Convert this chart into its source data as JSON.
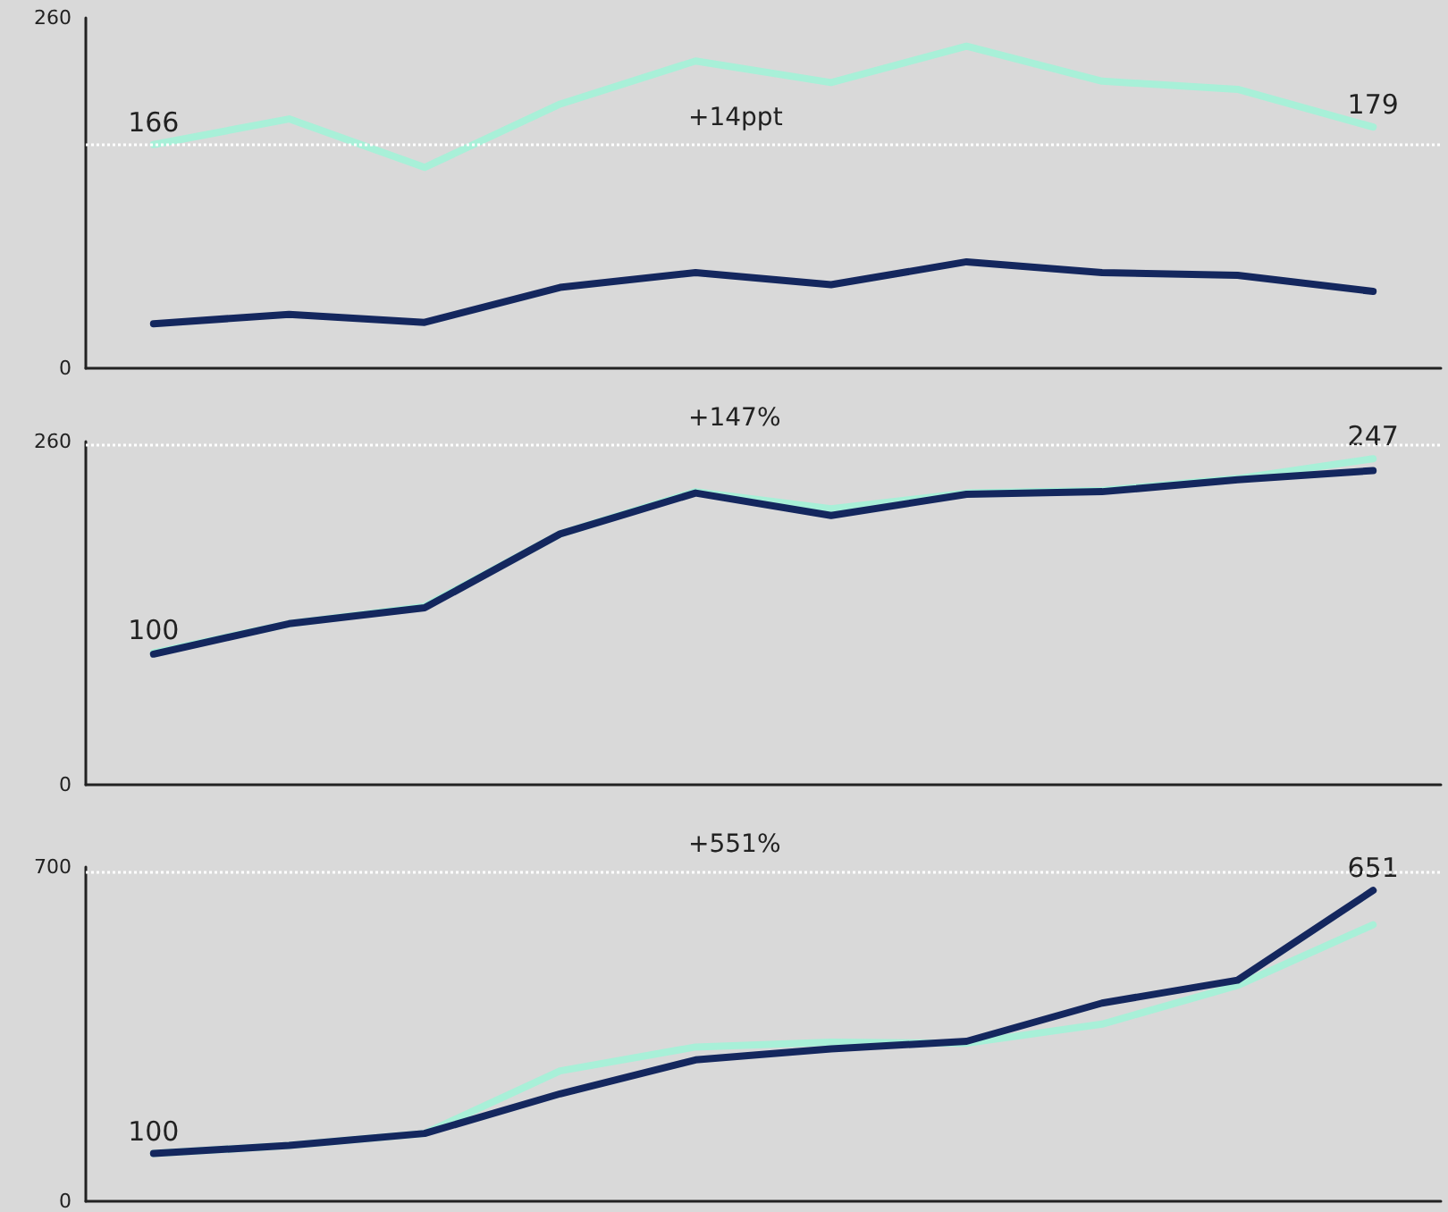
{
  "chart_data": [
    {
      "type": "line",
      "categories": [
        null,
        null,
        null,
        null,
        null,
        null,
        null,
        null,
        null,
        null
      ],
      "ylim": [
        0,
        260
      ],
      "yticks": [
        0,
        260
      ],
      "tick_labels": "y",
      "grid": false,
      "line_style": "solid",
      "series": [
        {
          "color": "#a8f0d8",
          "values": [
            166,
            185,
            149,
            196,
            228,
            212,
            239,
            213,
            207,
            179
          ],
          "value_labels": [
            "166",
            null,
            null,
            null,
            null,
            null,
            null,
            null,
            null,
            "179"
          ]
        },
        {
          "color": "#14275e",
          "values": [
            33,
            40,
            34,
            60,
            71,
            62,
            79,
            71,
            69,
            57
          ]
        }
      ],
      "ref_lines": [
        {
          "axis": "y",
          "value": 166,
          "color": "#ffffff",
          "line_style": "dotted"
        }
      ],
      "annotations": [
        "+14ppt"
      ]
    },
    {
      "type": "line",
      "categories": [
        null,
        null,
        null,
        null,
        null,
        null,
        null,
        null,
        null,
        null
      ],
      "ylim": [
        0,
        260
      ],
      "yticks": [
        0,
        260
      ],
      "tick_labels": "y",
      "grid": false,
      "line_style": "solid",
      "series": [
        {
          "color": "#a8f0d8",
          "values": [
            100,
            122,
            135,
            190,
            222,
            209,
            221,
            223,
            232,
            247
          ],
          "value_labels": [
            "100",
            null,
            null,
            null,
            null,
            null,
            null,
            null,
            null,
            "247"
          ]
        },
        {
          "color": "#14275e",
          "values": [
            99,
            122,
            134,
            190,
            221,
            204,
            220,
            222,
            231,
            238
          ]
        }
      ],
      "ref_lines": [
        {
          "axis": "y",
          "value": 257,
          "color": "#ffffff",
          "line_style": "dotted"
        }
      ],
      "annotations": [
        "+147%"
      ]
    },
    {
      "type": "line",
      "categories": [
        null,
        null,
        null,
        null,
        null,
        null,
        null,
        null,
        null,
        null
      ],
      "ylim": [
        0,
        700
      ],
      "yticks": [
        0,
        700
      ],
      "tick_labels": "y",
      "grid": false,
      "line_style": "solid",
      "series": [
        {
          "color": "#a8f0d8",
          "values": [
            100,
            117,
            142,
            273,
            323,
            333,
            331,
            371,
            452,
            579
          ]
        },
        {
          "color": "#14275e",
          "values": [
            100,
            117,
            142,
            225,
            296,
            319,
            335,
            415,
            463,
            651
          ],
          "value_labels": [
            "100",
            null,
            null,
            null,
            null,
            null,
            null,
            null,
            null,
            "651"
          ]
        }
      ],
      "ref_lines": [
        {
          "axis": "y",
          "value": 690,
          "color": "#ffffff",
          "line_style": "dotted"
        }
      ],
      "annotations": [
        "+551%"
      ]
    }
  ]
}
